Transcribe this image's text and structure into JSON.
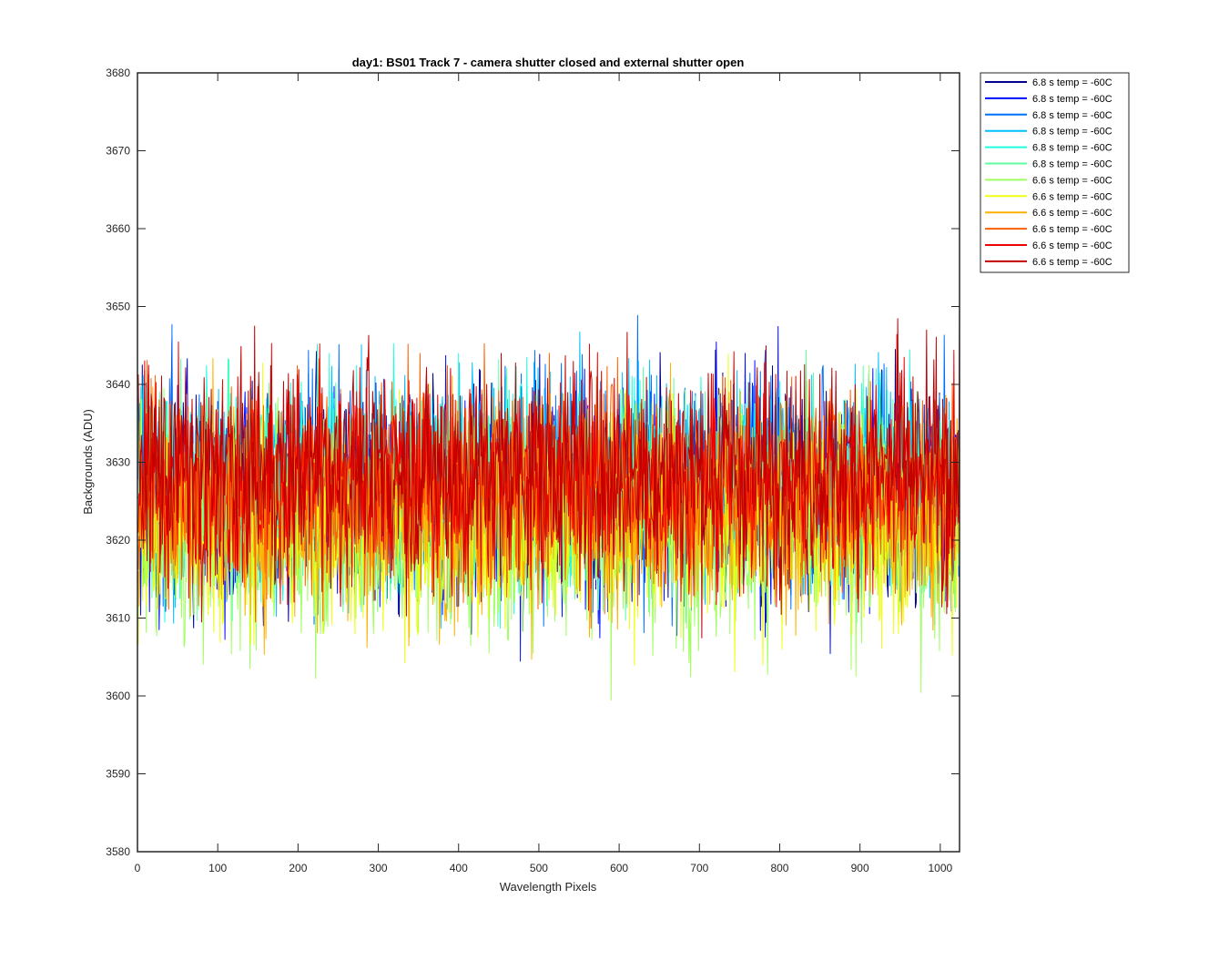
{
  "chart_data": {
    "type": "line",
    "title": "day1: BS01  Track 7 - camera shutter closed and external shutter open",
    "xlabel": "Wavelength Pixels",
    "ylabel": "Backgrounds (ADU)",
    "xlim": [
      0,
      1024
    ],
    "ylim": [
      3580,
      3680
    ],
    "xticks": [
      0,
      100,
      200,
      300,
      400,
      500,
      600,
      700,
      800,
      900,
      1000
    ],
    "yticks": [
      3580,
      3590,
      3600,
      3610,
      3620,
      3630,
      3640,
      3650,
      3660,
      3670,
      3680
    ],
    "grid": false,
    "legend_position": "outside-top-right",
    "n_points": 1024,
    "noise": {
      "sigma": 8,
      "seed": 7
    },
    "series": [
      {
        "name": "6.8 s temp = -60C",
        "color": "#00008f",
        "mean": 3626
      },
      {
        "name": "6.8 s temp = -60C",
        "color": "#0010ff",
        "mean": 3626
      },
      {
        "name": "6.8 s temp = -60C",
        "color": "#0070ff",
        "mean": 3627
      },
      {
        "name": "6.8 s temp = -60C",
        "color": "#00bfff",
        "mean": 3628
      },
      {
        "name": "6.8 s temp = -60C",
        "color": "#1fffdf",
        "mean": 3627
      },
      {
        "name": "6.8 s temp = -60C",
        "color": "#5fffa0",
        "mean": 3626
      },
      {
        "name": "6.6 s temp = -60C",
        "color": "#9fff60",
        "mean": 3621
      },
      {
        "name": "6.6 s temp = -60C",
        "color": "#efff10",
        "mean": 3622
      },
      {
        "name": "6.6 s temp = -60C",
        "color": "#ffb000",
        "mean": 3624
      },
      {
        "name": "6.6 s temp = -60C",
        "color": "#ff5f00",
        "mean": 3627
      },
      {
        "name": "6.6 s temp = -60C",
        "color": "#ef0000",
        "mean": 3628
      },
      {
        "name": "6.6 s temp = -60C",
        "color": "#c00000",
        "mean": 3629
      }
    ]
  }
}
